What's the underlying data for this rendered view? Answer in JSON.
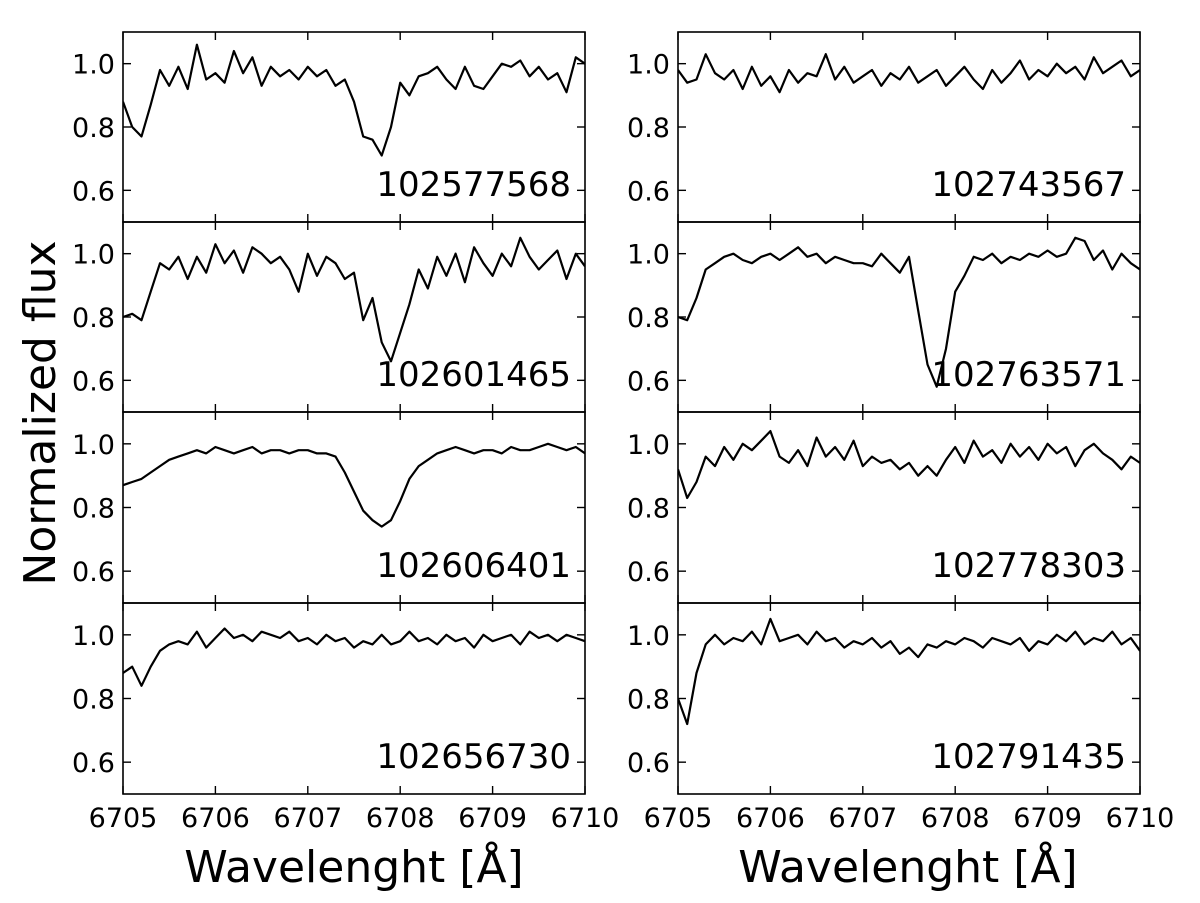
{
  "chart_data": {
    "type": "line",
    "ylabel": "Normalized flux",
    "xlabel": "Wavelenght [Å]",
    "xlim": [
      6705,
      6710
    ],
    "ylim": [
      0.5,
      1.1
    ],
    "x_ticks": [
      6705,
      6706,
      6707,
      6708,
      6709,
      6710
    ],
    "y_ticks": [
      0.6,
      0.8,
      1.0
    ],
    "x_tick_labels": [
      "6705",
      "6706",
      "6707",
      "6708",
      "6709",
      "6710"
    ],
    "y_tick_labels": [
      "0.6",
      "0.8",
      "1.0"
    ],
    "grid": false,
    "layout": "4 rows x 2 columns, shared axes",
    "panels": [
      {
        "label": "102577568",
        "x": [
          6705.0,
          6705.1,
          6705.2,
          6705.3,
          6705.4,
          6705.5,
          6705.6,
          6705.7,
          6705.8,
          6705.9,
          6706.0,
          6706.1,
          6706.2,
          6706.3,
          6706.4,
          6706.5,
          6706.6,
          6706.7,
          6706.8,
          6706.9,
          6707.0,
          6707.1,
          6707.2,
          6707.3,
          6707.4,
          6707.5,
          6707.6,
          6707.7,
          6707.8,
          6707.9,
          6708.0,
          6708.1,
          6708.2,
          6708.3,
          6708.4,
          6708.5,
          6708.6,
          6708.7,
          6708.8,
          6708.9,
          6709.0,
          6709.1,
          6709.2,
          6709.3,
          6709.4,
          6709.5,
          6709.6,
          6709.7,
          6709.8,
          6709.9,
          6710.0
        ],
        "y": [
          0.88,
          0.8,
          0.77,
          0.87,
          0.98,
          0.93,
          0.99,
          0.92,
          1.06,
          0.95,
          0.97,
          0.94,
          1.04,
          0.97,
          1.02,
          0.93,
          0.99,
          0.96,
          0.98,
          0.95,
          0.99,
          0.96,
          0.98,
          0.93,
          0.95,
          0.88,
          0.77,
          0.76,
          0.71,
          0.8,
          0.94,
          0.9,
          0.96,
          0.97,
          0.99,
          0.95,
          0.92,
          0.99,
          0.93,
          0.92,
          0.96,
          1.0,
          0.99,
          1.01,
          0.96,
          0.99,
          0.95,
          0.97,
          0.91,
          1.02,
          1.0
        ]
      },
      {
        "label": "102601465",
        "x": [
          6705.0,
          6705.1,
          6705.2,
          6705.3,
          6705.4,
          6705.5,
          6705.6,
          6705.7,
          6705.8,
          6705.9,
          6706.0,
          6706.1,
          6706.2,
          6706.3,
          6706.4,
          6706.5,
          6706.6,
          6706.7,
          6706.8,
          6706.9,
          6707.0,
          6707.1,
          6707.2,
          6707.3,
          6707.4,
          6707.5,
          6707.6,
          6707.7,
          6707.8,
          6707.9,
          6708.0,
          6708.1,
          6708.2,
          6708.3,
          6708.4,
          6708.5,
          6708.6,
          6708.7,
          6708.8,
          6708.9,
          6709.0,
          6709.1,
          6709.2,
          6709.3,
          6709.4,
          6709.5,
          6709.6,
          6709.7,
          6709.8,
          6709.9,
          6710.0
        ],
        "y": [
          0.8,
          0.81,
          0.79,
          0.88,
          0.97,
          0.95,
          0.99,
          0.92,
          0.99,
          0.94,
          1.03,
          0.97,
          1.01,
          0.94,
          1.02,
          1.0,
          0.97,
          0.99,
          0.95,
          0.88,
          1.0,
          0.93,
          0.99,
          0.97,
          0.92,
          0.94,
          0.79,
          0.86,
          0.72,
          0.66,
          0.75,
          0.84,
          0.95,
          0.89,
          0.99,
          0.93,
          1.0,
          0.91,
          1.02,
          0.97,
          0.93,
          1.0,
          0.96,
          1.05,
          0.99,
          0.95,
          0.98,
          1.01,
          0.92,
          1.0,
          0.96
        ]
      },
      {
        "label": "102606401",
        "x": [
          6705.0,
          6705.1,
          6705.2,
          6705.3,
          6705.4,
          6705.5,
          6705.6,
          6705.7,
          6705.8,
          6705.9,
          6706.0,
          6706.1,
          6706.2,
          6706.3,
          6706.4,
          6706.5,
          6706.6,
          6706.7,
          6706.8,
          6706.9,
          6707.0,
          6707.1,
          6707.2,
          6707.3,
          6707.4,
          6707.5,
          6707.6,
          6707.7,
          6707.8,
          6707.9,
          6708.0,
          6708.1,
          6708.2,
          6708.3,
          6708.4,
          6708.5,
          6708.6,
          6708.7,
          6708.8,
          6708.9,
          6709.0,
          6709.1,
          6709.2,
          6709.3,
          6709.4,
          6709.5,
          6709.6,
          6709.7,
          6709.8,
          6709.9,
          6710.0
        ],
        "y": [
          0.87,
          0.88,
          0.89,
          0.91,
          0.93,
          0.95,
          0.96,
          0.97,
          0.98,
          0.97,
          0.99,
          0.98,
          0.97,
          0.98,
          0.99,
          0.97,
          0.98,
          0.98,
          0.97,
          0.98,
          0.98,
          0.97,
          0.97,
          0.96,
          0.91,
          0.85,
          0.79,
          0.76,
          0.74,
          0.76,
          0.82,
          0.89,
          0.93,
          0.95,
          0.97,
          0.98,
          0.99,
          0.98,
          0.97,
          0.98,
          0.98,
          0.97,
          0.99,
          0.98,
          0.98,
          0.99,
          1.0,
          0.99,
          0.98,
          0.99,
          0.97
        ]
      },
      {
        "label": "102656730",
        "x": [
          6705.0,
          6705.1,
          6705.2,
          6705.3,
          6705.4,
          6705.5,
          6705.6,
          6705.7,
          6705.8,
          6705.9,
          6706.0,
          6706.1,
          6706.2,
          6706.3,
          6706.4,
          6706.5,
          6706.6,
          6706.7,
          6706.8,
          6706.9,
          6707.0,
          6707.1,
          6707.2,
          6707.3,
          6707.4,
          6707.5,
          6707.6,
          6707.7,
          6707.8,
          6707.9,
          6708.0,
          6708.1,
          6708.2,
          6708.3,
          6708.4,
          6708.5,
          6708.6,
          6708.7,
          6708.8,
          6708.9,
          6709.0,
          6709.1,
          6709.2,
          6709.3,
          6709.4,
          6709.5,
          6709.6,
          6709.7,
          6709.8,
          6709.9,
          6710.0
        ],
        "y": [
          0.88,
          0.9,
          0.84,
          0.9,
          0.95,
          0.97,
          0.98,
          0.97,
          1.01,
          0.96,
          0.99,
          1.02,
          0.99,
          1.0,
          0.98,
          1.01,
          1.0,
          0.99,
          1.01,
          0.98,
          0.99,
          0.97,
          1.0,
          0.98,
          0.99,
          0.96,
          0.98,
          0.97,
          1.0,
          0.97,
          0.98,
          1.01,
          0.98,
          0.99,
          0.97,
          1.0,
          0.98,
          0.99,
          0.96,
          1.0,
          0.98,
          0.99,
          1.0,
          0.97,
          1.01,
          0.99,
          1.0,
          0.98,
          1.0,
          0.99,
          0.98
        ]
      },
      {
        "label": "102743567",
        "x": [
          6705.0,
          6705.1,
          6705.2,
          6705.3,
          6705.4,
          6705.5,
          6705.6,
          6705.7,
          6705.8,
          6705.9,
          6706.0,
          6706.1,
          6706.2,
          6706.3,
          6706.4,
          6706.5,
          6706.6,
          6706.7,
          6706.8,
          6706.9,
          6707.0,
          6707.1,
          6707.2,
          6707.3,
          6707.4,
          6707.5,
          6707.6,
          6707.7,
          6707.8,
          6707.9,
          6708.0,
          6708.1,
          6708.2,
          6708.3,
          6708.4,
          6708.5,
          6708.6,
          6708.7,
          6708.8,
          6708.9,
          6709.0,
          6709.1,
          6709.2,
          6709.3,
          6709.4,
          6709.5,
          6709.6,
          6709.7,
          6709.8,
          6709.9,
          6710.0
        ],
        "y": [
          0.98,
          0.94,
          0.95,
          1.03,
          0.97,
          0.95,
          0.98,
          0.92,
          0.99,
          0.93,
          0.96,
          0.91,
          0.98,
          0.94,
          0.97,
          0.96,
          1.03,
          0.95,
          0.99,
          0.94,
          0.96,
          0.98,
          0.93,
          0.97,
          0.95,
          0.99,
          0.94,
          0.96,
          0.98,
          0.93,
          0.96,
          0.99,
          0.95,
          0.92,
          0.98,
          0.94,
          0.97,
          1.01,
          0.95,
          0.98,
          0.96,
          1.0,
          0.97,
          0.99,
          0.95,
          1.02,
          0.97,
          0.99,
          1.01,
          0.96,
          0.98
        ]
      },
      {
        "label": "102763571",
        "x": [
          6705.0,
          6705.1,
          6705.2,
          6705.3,
          6705.4,
          6705.5,
          6705.6,
          6705.7,
          6705.8,
          6705.9,
          6706.0,
          6706.1,
          6706.2,
          6706.3,
          6706.4,
          6706.5,
          6706.6,
          6706.7,
          6706.8,
          6706.9,
          6707.0,
          6707.1,
          6707.2,
          6707.3,
          6707.4,
          6707.5,
          6707.6,
          6707.7,
          6707.8,
          6707.9,
          6708.0,
          6708.1,
          6708.2,
          6708.3,
          6708.4,
          6708.5,
          6708.6,
          6708.7,
          6708.8,
          6708.9,
          6709.0,
          6709.1,
          6709.2,
          6709.3,
          6709.4,
          6709.5,
          6709.6,
          6709.7,
          6709.8,
          6709.9,
          6710.0
        ],
        "y": [
          0.8,
          0.79,
          0.86,
          0.95,
          0.97,
          0.99,
          1.0,
          0.98,
          0.97,
          0.99,
          1.0,
          0.98,
          1.0,
          1.02,
          0.99,
          1.0,
          0.97,
          0.99,
          0.98,
          0.97,
          0.97,
          0.96,
          1.0,
          0.97,
          0.94,
          0.99,
          0.82,
          0.65,
          0.58,
          0.7,
          0.88,
          0.93,
          0.99,
          0.98,
          1.0,
          0.97,
          0.99,
          0.98,
          1.0,
          0.99,
          1.01,
          0.99,
          1.0,
          1.05,
          1.04,
          0.98,
          1.01,
          0.95,
          1.0,
          0.97,
          0.95
        ]
      },
      {
        "label": "102778303",
        "x": [
          6705.0,
          6705.1,
          6705.2,
          6705.3,
          6705.4,
          6705.5,
          6705.6,
          6705.7,
          6705.8,
          6705.9,
          6706.0,
          6706.1,
          6706.2,
          6706.3,
          6706.4,
          6706.5,
          6706.6,
          6706.7,
          6706.8,
          6706.9,
          6707.0,
          6707.1,
          6707.2,
          6707.3,
          6707.4,
          6707.5,
          6707.6,
          6707.7,
          6707.8,
          6707.9,
          6708.0,
          6708.1,
          6708.2,
          6708.3,
          6708.4,
          6708.5,
          6708.6,
          6708.7,
          6708.8,
          6708.9,
          6709.0,
          6709.1,
          6709.2,
          6709.3,
          6709.4,
          6709.5,
          6709.6,
          6709.7,
          6709.8,
          6709.9,
          6710.0
        ],
        "y": [
          0.92,
          0.83,
          0.88,
          0.96,
          0.93,
          0.99,
          0.95,
          1.0,
          0.98,
          1.01,
          1.04,
          0.96,
          0.94,
          0.98,
          0.93,
          1.02,
          0.96,
          0.99,
          0.95,
          1.01,
          0.93,
          0.96,
          0.94,
          0.95,
          0.92,
          0.94,
          0.9,
          0.93,
          0.9,
          0.95,
          0.99,
          0.94,
          1.01,
          0.96,
          0.98,
          0.94,
          1.0,
          0.96,
          0.99,
          0.95,
          1.0,
          0.97,
          0.99,
          0.93,
          0.98,
          1.0,
          0.97,
          0.95,
          0.92,
          0.96,
          0.94
        ]
      },
      {
        "label": "102791435",
        "x": [
          6705.0,
          6705.1,
          6705.2,
          6705.3,
          6705.4,
          6705.5,
          6705.6,
          6705.7,
          6705.8,
          6705.9,
          6706.0,
          6706.1,
          6706.2,
          6706.3,
          6706.4,
          6706.5,
          6706.6,
          6706.7,
          6706.8,
          6706.9,
          6707.0,
          6707.1,
          6707.2,
          6707.3,
          6707.4,
          6707.5,
          6707.6,
          6707.7,
          6707.8,
          6707.9,
          6708.0,
          6708.1,
          6708.2,
          6708.3,
          6708.4,
          6708.5,
          6708.6,
          6708.7,
          6708.8,
          6708.9,
          6709.0,
          6709.1,
          6709.2,
          6709.3,
          6709.4,
          6709.5,
          6709.6,
          6709.7,
          6709.8,
          6709.9,
          6710.0
        ],
        "y": [
          0.8,
          0.72,
          0.88,
          0.97,
          1.0,
          0.97,
          0.99,
          0.98,
          1.01,
          0.97,
          1.05,
          0.98,
          0.99,
          1.0,
          0.97,
          1.01,
          0.98,
          0.99,
          0.96,
          0.98,
          0.97,
          0.99,
          0.96,
          0.98,
          0.94,
          0.96,
          0.93,
          0.97,
          0.96,
          0.98,
          0.97,
          0.99,
          0.98,
          0.96,
          0.99,
          0.98,
          0.97,
          0.99,
          0.95,
          0.98,
          0.97,
          1.0,
          0.98,
          1.01,
          0.97,
          0.99,
          0.98,
          1.01,
          0.97,
          0.99,
          0.95
        ]
      }
    ]
  }
}
